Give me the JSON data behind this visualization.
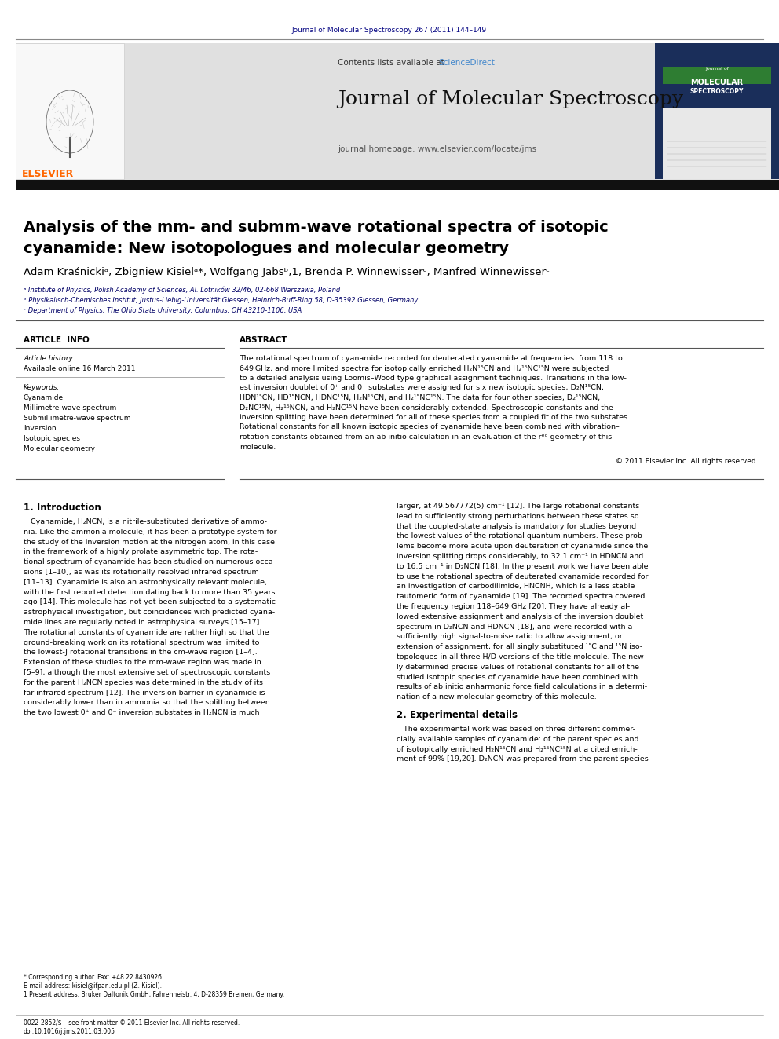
{
  "page_width": 9.92,
  "page_height": 13.23,
  "dpi": 100,
  "bg": "#ffffff",
  "header_ref": "Journal of Molecular Spectroscopy 267 (2011) 144–149",
  "header_ref_color": "#000080",
  "journal_name": "Journal of Molecular Spectroscopy",
  "contents_text": "Contents lists available at ",
  "sciencedirect_text": "ScienceDirect",
  "sciencedirect_color": "#4488cc",
  "homepage_text": "journal homepage: www.elsevier.com/locate/jms",
  "elsevier_color": "#ff6600",
  "header_bg": "#e0e0e0",
  "cover_bg": "#1a2e5a",
  "cover_green": "#2e7d32",
  "title1": "Analysis of the mm- and submm-wave rotational spectra of isotopic",
  "title2": "cyanamide: New isotopologues and molecular geometry",
  "authors_text": "Adam Kraśnickiᵃ, Zbigniew Kisielᵃ*, Wolfgang Jabsᵇ,1, Brenda P. Winnewisserᶜ, Manfred Winnewisserᶜ",
  "affil_a": "ᵃ Institute of Physics, Polish Academy of Sciences, Al. Lotników 32/46, 02-668 Warszawa, Poland",
  "affil_b": "ᵇ Physikalisch-Chemisches Institut, Justus-Liebig-Universität Giessen, Heinrich-Buff-Ring 58, D-35392 Giessen, Germany",
  "affil_c": "ᶜ Department of Physics, The Ohio State University, Columbus, OH 43210-1106, USA",
  "article_info_label": "ARTICLE  INFO",
  "abstract_label": "ABSTRACT",
  "article_history_label": "Article history:",
  "available_online": "Available online 16 March 2011",
  "keywords_label": "Keywords:",
  "keywords": [
    "Cyanamide",
    "Millimetre-wave spectrum",
    "Submillimetre-wave spectrum",
    "Inversion",
    "Isotopic species",
    "Molecular geometry"
  ],
  "abstract_lines": [
    "The rotational spectrum of cyanamide recorded for deuterated cyanamide at frequencies  from 118 to",
    "649 GHz, and more limited spectra for isotopically enriched H₂N¹⁵CN and H₂¹⁵NC¹⁵N were subjected",
    "to a detailed analysis using Loomis–Wood type graphical assignment techniques. Transitions in the low-",
    "est inversion doublet of 0⁺ and 0⁻ substates were assigned for six new isotopic species; D₂N¹⁵CN,",
    "HDN¹⁵CN, HD¹⁵NCN, HDNC¹⁵N, H₂N¹⁵CN, and H₂¹⁵NC¹⁵N. The data for four other species, D₂¹⁵NCN,",
    "D₂NC¹⁵N, H₂¹⁵NCN, and H₂NC¹⁵N have been considerably extended. Spectroscopic constants and the",
    "inversion splitting have been determined for all of these species from a coupled fit of the two substates.",
    "Rotational constants for all known isotopic species of cyanamide have been combined with vibration–",
    "rotation constants obtained from an ab initio calculation in an evaluation of the rᵉᵒ geometry of this",
    "molecule."
  ],
  "copyright": "© 2011 Elsevier Inc. All rights reserved.",
  "intro_heading": "1. Introduction",
  "col1_lines": [
    "   Cyanamide, H₂NCN, is a nitrile-substituted derivative of ammo-",
    "nia. Like the ammonia molecule, it has been a prototype system for",
    "the study of the inversion motion at the nitrogen atom, in this case",
    "in the framework of a highly prolate asymmetric top. The rota-",
    "tional spectrum of cyanamide has been studied on numerous occa-",
    "sions [1–10], as was its rotationally resolved infrared spectrum",
    "[11–13]. Cyanamide is also an astrophysically relevant molecule,",
    "with the first reported detection dating back to more than 35 years",
    "ago [14]. This molecule has not yet been subjected to a systematic",
    "astrophysical investigation, but coincidences with predicted cyana-",
    "mide lines are regularly noted in astrophysical surveys [15–17].",
    "The rotational constants of cyanamide are rather high so that the",
    "ground-breaking work on its rotational spectrum was limited to",
    "the lowest-J rotational transitions in the cm-wave region [1–4].",
    "Extension of these studies to the mm-wave region was made in",
    "[5–9], although the most extensive set of spectroscopic constants",
    "for the parent H₂NCN species was determined in the study of its",
    "far infrared spectrum [12]. The inversion barrier in cyanamide is",
    "considerably lower than in ammonia so that the splitting between",
    "the two lowest 0⁺ and 0⁻ inversion substates in H₂NCN is much"
  ],
  "col2_lines": [
    "larger, at 49.567772(5) cm⁻¹ [12]. The large rotational constants",
    "lead to sufficiently strong perturbations between these states so",
    "that the coupled-state analysis is mandatory for studies beyond",
    "the lowest values of the rotational quantum numbers. These prob-",
    "lems become more acute upon deuteration of cyanamide since the",
    "inversion splitting drops considerably, to 32.1 cm⁻¹ in HDNCN and",
    "to 16.5 cm⁻¹ in D₂NCN [18]. In the present work we have been able",
    "to use the rotational spectra of deuterated cyanamide recorded for",
    "an investigation of carbodilimide, HNCNH, which is a less stable",
    "tautomeric form of cyanamide [19]. The recorded spectra covered",
    "the frequency region 118–649 GHz [20]. They have already al-",
    "lowed extensive assignment and analysis of the inversion doublet",
    "spectrum in D₂NCN and HDNCN [18], and were recorded with a",
    "sufficiently high signal-to-noise ratio to allow assignment, or",
    "extension of assignment, for all singly substituted ¹⁵C and ¹⁵N iso-",
    "topologues in all three H/D versions of the title molecule. The new-",
    "ly determined precise values of rotational constants for all of the",
    "studied isotopic species of cyanamide have been combined with",
    "results of ab initio anharmonic force field calculations in a determi-",
    "nation of a new molecular geometry of this molecule."
  ],
  "sec2_heading": "2. Experimental details",
  "sec2_lines": [
    "   The experimental work was based on three different commer-",
    "cially available samples of cyanamide: of the parent species and",
    "of isotopically enriched H₂N¹⁵CN and H₂¹⁵NC¹⁵N at a cited enrich-",
    "ment of 99% [19,20]. D₂NCN was prepared from the parent species"
  ],
  "footnote_star": "* Corresponding author. Fax: +48 22 8430926.",
  "footnote_email": "E-mail address: kisiel@ifpan.edu.pl (Z. Kisiel).",
  "footnote_1": "1 Present address: Bruker Daltonik GmbH, Fahrenheistr. 4, D-28359 Bremen, Germany.",
  "footer_issn": "0022-2852/$ – see front matter © 2011 Elsevier Inc. All rights reserved.",
  "footer_doi": "doi:10.1016/j.jms.2011.03.005"
}
